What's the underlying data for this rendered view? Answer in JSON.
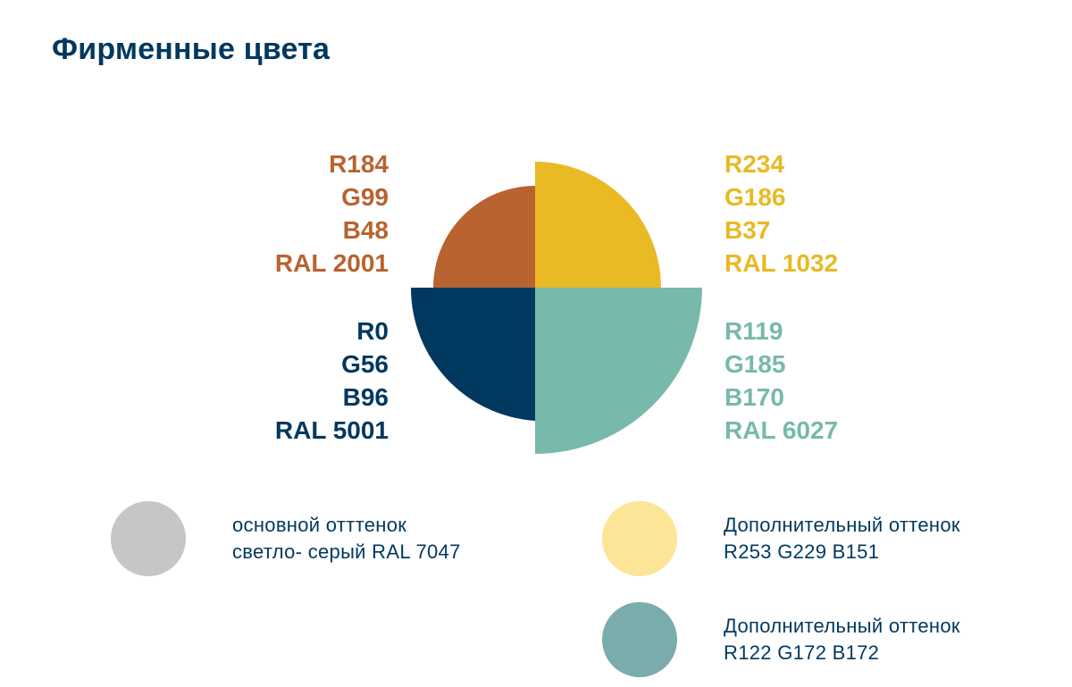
{
  "title": "Фирменные цвета",
  "primary_colors": {
    "orange": {
      "hex": "#B86330",
      "lines": [
        "R184",
        "G99",
        "B48",
        "RAL 2001"
      ]
    },
    "yellow": {
      "hex": "#EABA25",
      "lines": [
        "R234",
        "G186",
        "B37",
        "RAL 1032"
      ]
    },
    "navy": {
      "hex": "#003860",
      "lines": [
        "R0",
        "G56",
        "B96",
        "RAL 5001"
      ]
    },
    "teal": {
      "hex": "#77B9AA",
      "lines": [
        "R119",
        "G185",
        "B170",
        "RAL 6027"
      ]
    }
  },
  "shades": [
    {
      "color": "#C6C6C6",
      "lines": [
        "основной отттенок",
        "светло- серый RAL 7047"
      ]
    },
    {
      "color": "#FDE597",
      "lines": [
        "Дополнительный оттенок",
        "R253 G229 B151"
      ]
    },
    {
      "color": "#7AACAC",
      "lines": [
        "Дополнительный оттенок",
        "R122 G172 B172"
      ]
    }
  ]
}
